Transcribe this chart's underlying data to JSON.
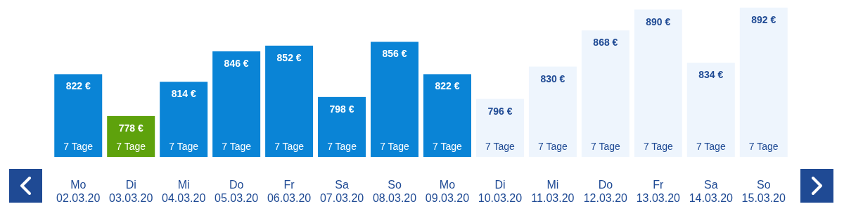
{
  "chart_data": {
    "type": "bar",
    "categories": [
      "Mo\n02.03.20",
      "Di\n03.03.20",
      "Mi\n04.03.20",
      "Do\n05.03.20",
      "Fr\n06.03.20",
      "Sa\n07.03.20",
      "So\n08.03.20",
      "Mo\n09.03.20",
      "Di\n10.03.20",
      "Mi\n11.03.20",
      "Do\n12.03.20",
      "Fr\n13.03.20",
      "Sa\n14.03.20",
      "So\n15.03.20"
    ],
    "values": [
      822,
      778,
      814,
      846,
      852,
      798,
      856,
      822,
      796,
      830,
      868,
      890,
      834,
      892
    ],
    "colors": [
      "#0a84d6",
      "#5ea20c",
      "#0a84d6",
      "#0a84d6",
      "#0a84d6",
      "#0a84d6",
      "#0a84d6",
      "#0a84d6",
      "#eef5fd",
      "#eef5fd",
      "#eef5fd",
      "#eef5fd",
      "#eef5fd",
      "#eef5fd"
    ],
    "value_labels": [
      "822 €",
      "778 €",
      "814 €",
      "846 €",
      "852 €",
      "798 €",
      "856 €",
      "822 €",
      "796 €",
      "830 €",
      "868 €",
      "890 €",
      "834 €",
      "892 €"
    ],
    "ylim": [
      735,
      900
    ],
    "tick_labels": "x",
    "annotations": [
      "7 Tage",
      "7 Tage",
      "7 Tage",
      "7 Tage",
      "7 Tage",
      "7 Tage",
      "7 Tage",
      "7 Tage",
      "7 Tage",
      "7 Tage",
      "7 Tage",
      "7 Tage",
      "7 Tage",
      "7 Tage"
    ]
  }
}
